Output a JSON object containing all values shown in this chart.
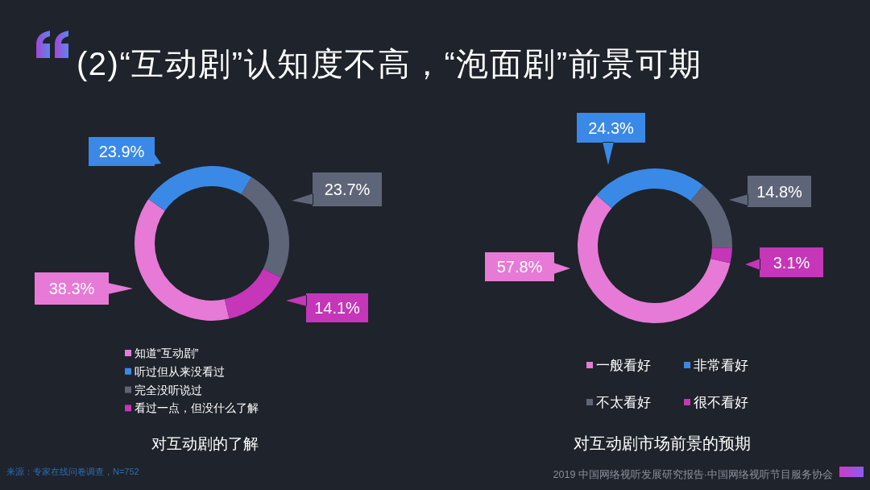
{
  "chart_data": [
    {
      "type": "donut",
      "title": "(2)“互动剧”认知度不高，“泡面剧”前景可期",
      "xlabel": "对互动剧的了解",
      "categories": [
        "知道“互动剧”",
        "听过但从来没看过",
        "完全没听说过",
        "看过一点，但没什么了解"
      ],
      "values": [
        38.3,
        23.9,
        23.7,
        14.1
      ],
      "colors": [
        "#e67ad6",
        "#3a89e6",
        "#5e6578",
        "#c536b8"
      ],
      "value_labels": [
        "38.3%",
        "23.9%",
        "23.7%",
        "14.1%"
      ],
      "legend": "bottom",
      "annotations": [
        "来源：专家在线问卷调查，N=752"
      ]
    },
    {
      "type": "donut",
      "xlabel": "对互动剧市场前景的预期",
      "categories": [
        "一般看好",
        "非常看好",
        "不太看好",
        "很不看好"
      ],
      "values": [
        57.8,
        24.3,
        14.8,
        3.1
      ],
      "colors": [
        "#e67ad6",
        "#3a89e6",
        "#5e6578",
        "#c536b8"
      ],
      "value_labels": [
        "57.8%",
        "24.3%",
        "14.8%",
        "3.1%"
      ],
      "legend": "bottom",
      "annotations": [
        "2019 中国网络视听发展研究报告·中国网络视听节目服务协会"
      ]
    }
  ]
}
